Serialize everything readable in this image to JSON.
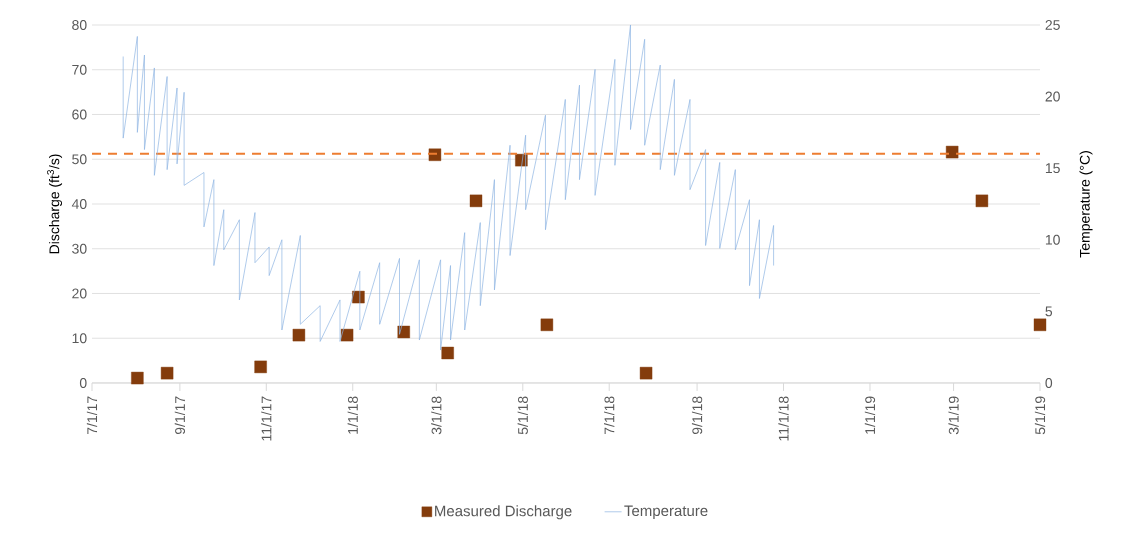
{
  "chart_data": {
    "type": "scatter",
    "ylabel": "Discharge (ft$^{3}$/s)",
    "y2label": "Temperature (°C)",
    "xlim": [
      "2017-07-01",
      "2019-05-01"
    ],
    "xticks": [
      {
        "value": "2017-07-01",
        "label": "7/1/17"
      },
      {
        "value": "2017-09-01",
        "label": "9/1/17"
      },
      {
        "value": "2017-11-01",
        "label": "11/1/17"
      },
      {
        "value": "2018-01-01",
        "label": "1/1/18"
      },
      {
        "value": "2018-03-01",
        "label": "3/1/18"
      },
      {
        "value": "2018-05-01",
        "label": "5/1/18"
      },
      {
        "value": "2018-07-01",
        "label": "7/1/18"
      },
      {
        "value": "2018-09-01",
        "label": "9/1/18"
      },
      {
        "value": "2018-11-01",
        "label": "11/1/18"
      },
      {
        "value": "2019-01-01",
        "label": "1/1/19"
      },
      {
        "value": "2019-03-01",
        "label": "3/1/19"
      },
      {
        "value": "2019-05-01",
        "label": "5/1/19"
      }
    ],
    "ylim": [
      0,
      80
    ],
    "yticks": [
      0,
      10,
      20,
      30,
      40,
      50,
      60,
      70,
      80
    ],
    "y2lim": [
      0,
      25
    ],
    "y2ticks": [
      0,
      5,
      10,
      15,
      20,
      25
    ],
    "grid": "y",
    "legend": "bottom",
    "ref_lines": [
      {
        "axis": "y2",
        "value": 16,
        "color": "#ed7d31",
        "line_style": "dashed"
      }
    ],
    "series": [
      {
        "name": "Measured Discharge",
        "marker": "square",
        "color": "#843c0c",
        "x": [
          "2017-08-02",
          "2017-08-23",
          "2017-10-28",
          "2017-11-24",
          "2017-12-28",
          "2018-01-05",
          "2018-02-06",
          "2018-02-28",
          "2018-03-09",
          "2018-03-29",
          "2018-04-30",
          "2018-05-18",
          "2018-07-27",
          "2019-02-28",
          "2019-03-21",
          "2019-05-01"
        ],
        "values": [
          1.1,
          2.2,
          3.6,
          10.7,
          10.7,
          19.2,
          11.4,
          51,
          6.7,
          40.7,
          49.8,
          13,
          2.2,
          51.6,
          40.7,
          13
        ]
      },
      {
        "name": "Temperature",
        "type": "line",
        "axis": "y2",
        "marker": "none",
        "line_style": "solid",
        "color": "#8db4e2",
        "x": [
          "2017-07-23",
          "2017-07-23",
          "2017-08-02",
          "2017-08-02",
          "2017-08-07",
          "2017-08-07",
          "2017-08-14",
          "2017-08-14",
          "2017-08-23",
          "2017-08-23",
          "2017-08-30",
          "2017-08-30",
          "2017-09-04",
          "2017-09-04",
          "2017-09-18",
          "2017-09-18",
          "2017-09-25",
          "2017-09-25",
          "2017-10-02",
          "2017-10-02",
          "2017-10-13",
          "2017-10-13",
          "2017-10-24",
          "2017-10-24",
          "2017-11-03",
          "2017-11-03",
          "2017-11-12",
          "2017-11-12",
          "2017-11-25",
          "2017-11-25",
          "2017-12-09",
          "2017-12-09",
          "2017-12-23",
          "2017-12-23",
          "2018-01-06",
          "2018-01-06",
          "2018-01-20",
          "2018-01-20",
          "2018-02-03",
          "2018-02-03",
          "2018-02-17",
          "2018-02-17",
          "2018-03-04",
          "2018-03-04",
          "2018-03-11",
          "2018-03-11",
          "2018-03-21",
          "2018-03-21",
          "2018-04-01",
          "2018-04-01",
          "2018-04-11",
          "2018-04-11",
          "2018-04-22",
          "2018-04-22",
          "2018-05-03",
          "2018-05-03",
          "2018-05-17",
          "2018-05-17",
          "2018-05-31",
          "2018-05-31",
          "2018-06-10",
          "2018-06-10",
          "2018-06-21",
          "2018-06-21",
          "2018-07-05",
          "2018-07-05",
          "2018-07-16",
          "2018-07-16",
          "2018-07-26",
          "2018-07-26",
          "2018-08-06",
          "2018-08-06",
          "2018-08-16",
          "2018-08-16",
          "2018-08-27",
          "2018-08-27",
          "2018-09-07",
          "2018-09-07",
          "2018-09-17",
          "2018-09-17",
          "2018-09-28",
          "2018-09-28",
          "2018-10-08",
          "2018-10-08",
          "2018-10-15",
          "2018-10-15",
          "2018-10-25",
          "2018-10-25"
        ],
        "values": [
          22.8,
          17.1,
          24.2,
          17.5,
          22.9,
          16.3,
          22.0,
          14.5,
          21.4,
          14.9,
          20.6,
          15.3,
          20.3,
          13.8,
          14.7,
          10.9,
          14.2,
          8.2,
          12.1,
          9.3,
          11.4,
          5.8,
          11.9,
          8.4,
          9.5,
          7.5,
          10.0,
          3.7,
          10.3,
          4.1,
          5.4,
          2.9,
          5.8,
          2.9,
          7.8,
          3.7,
          8.4,
          4.1,
          8.7,
          3.4,
          8.6,
          3.0,
          8.6,
          2.3,
          8.2,
          3.0,
          10.5,
          3.7,
          11.2,
          5.4,
          14.2,
          6.5,
          16.6,
          8.9,
          17.3,
          12.1,
          18.7,
          10.7,
          19.8,
          12.8,
          20.8,
          14.2,
          21.9,
          13.1,
          22.6,
          15.2,
          25.0,
          17.7,
          24.0,
          16.6,
          22.2,
          14.9,
          21.2,
          14.5,
          19.8,
          13.5,
          16.3,
          9.6,
          15.4,
          9.4,
          14.9,
          9.3,
          12.8,
          6.8,
          11.4,
          5.9,
          11.0,
          8.2
        ]
      }
    ]
  }
}
